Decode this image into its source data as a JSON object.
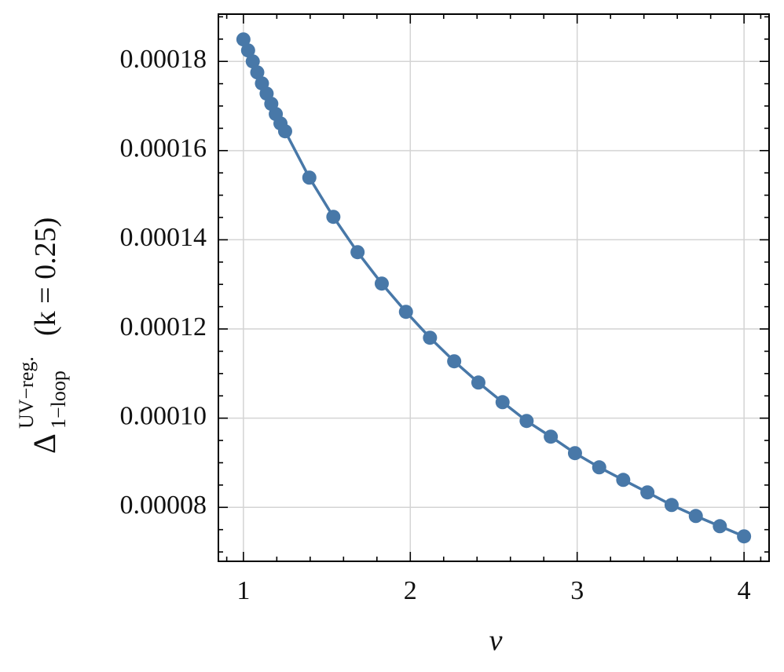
{
  "chart_data": {
    "type": "line",
    "x_label": "ν",
    "y_label": {
      "base": "Δ",
      "sup": "UV−reg.",
      "sub": "1−loop",
      "rest": "(k = 0.25)"
    },
    "x": [
      1,
      1.028,
      1.056,
      1.083,
      1.111,
      1.139,
      1.167,
      1.194,
      1.222,
      1.25,
      1.395,
      1.539,
      1.684,
      1.829,
      1.974,
      2.118,
      2.263,
      2.408,
      2.553,
      2.697,
      2.842,
      2.987,
      3.132,
      3.276,
      3.421,
      3.566,
      3.711,
      3.855,
      4
    ],
    "values": [
      0.00018493,
      0.00018246,
      0.00018,
      0.00017754,
      0.00017507,
      0.00017278,
      0.00017049,
      0.0001682,
      0.00016609,
      0.00016433,
      0.00015394,
      0.00014514,
      0.00013722,
      0.00013018,
      0.00012384,
      0.00011803,
      0.00011275,
      0.00010799,
      0.00010359,
      9.937e-05,
      9.585e-05,
      9.215e-05,
      8.898e-05,
      8.616e-05,
      8.335e-05,
      8.053e-05,
      7.806e-05,
      7.577e-05,
      7.349e-05
    ],
    "color": "#4878a8",
    "xlim": [
      0.85,
      4.15
    ],
    "xticks": [
      1,
      2,
      3,
      4
    ],
    "x_minor_ticks": [
      0.9,
      1.2,
      1.4,
      1.6,
      1.8,
      2.2,
      2.4,
      2.6,
      2.8,
      3.2,
      3.4,
      3.6,
      3.8,
      4.1
    ],
    "ylim": [
      6.79e-05,
      0.0001906
    ],
    "yticks": [
      8e-05,
      {
        "value": 0.0001,
        "label": "0.00010"
      },
      0.00012,
      0.00014,
      0.00016,
      0.00018
    ],
    "y_minor_ticks": [
      7e-05,
      7.5e-05,
      8.5e-05,
      9e-05,
      9.5e-05,
      0.000105,
      0.00011,
      0.000115,
      0.000125,
      0.00013,
      0.000135,
      0.000145,
      0.00015,
      0.000155,
      0.000165,
      0.00017,
      0.000175,
      0.000185,
      0.00019
    ],
    "grid": true
  }
}
